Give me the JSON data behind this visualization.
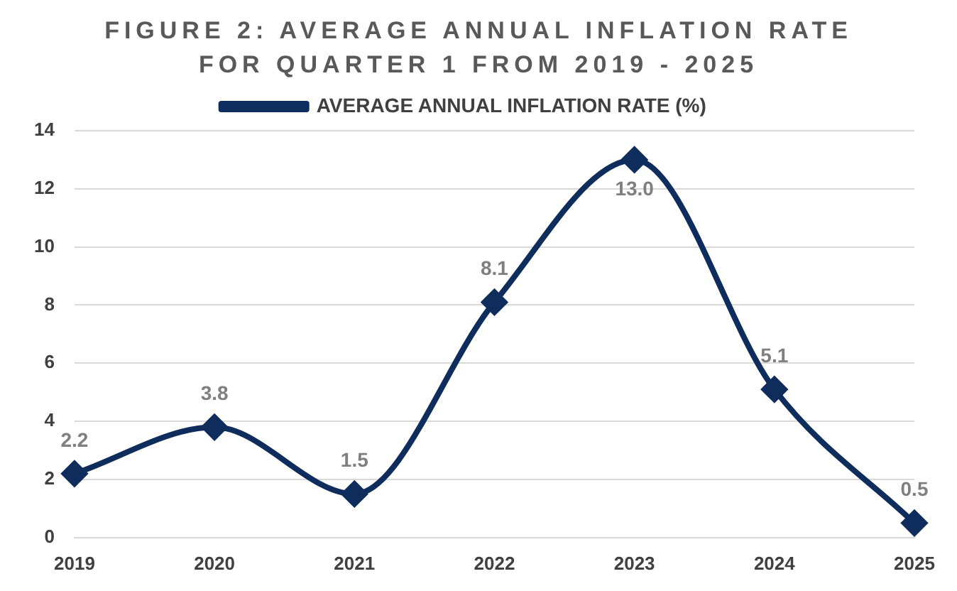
{
  "chart_data": {
    "type": "line",
    "title": "FIGURE 2: AVERAGE ANNUAL INFLATION RATE FOR QUARTER 1 FROM 2019 - 2025",
    "categories": [
      "2019",
      "2020",
      "2021",
      "2022",
      "2023",
      "2024",
      "2025"
    ],
    "series": [
      {
        "name": "AVERAGE ANNUAL INFLATION RATE (%)",
        "color": "#0e2d5c",
        "values": [
          2.2,
          3.8,
          1.5,
          8.1,
          13.0,
          5.1,
          0.5
        ],
        "value_labels": [
          "2.2",
          "3.8",
          "1.5",
          "8.1",
          "13.0",
          "5.1",
          "0.5"
        ]
      }
    ],
    "ylim": [
      0,
      14
    ],
    "yticks": [
      0,
      2,
      4,
      6,
      8,
      10,
      12,
      14
    ],
    "grid": "y",
    "legend": "top",
    "marker": "diamond",
    "line_style": "solid"
  }
}
